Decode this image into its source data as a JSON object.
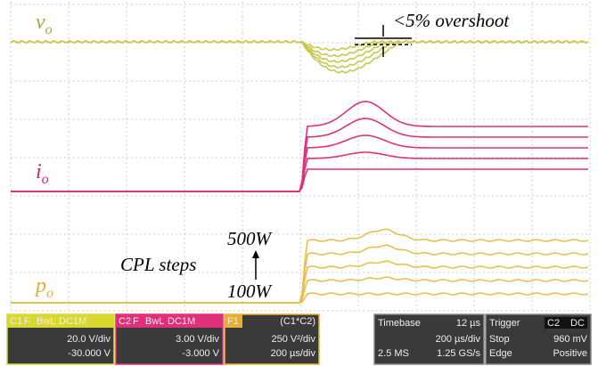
{
  "traces": {
    "vo": {
      "base": "v",
      "sub": "o"
    },
    "io": {
      "base": "i",
      "sub": "o"
    },
    "po": {
      "base": "p",
      "sub": "o"
    }
  },
  "annotations": {
    "overshoot": "<5% overshoot",
    "cpl_steps": "CPL steps",
    "top_step": "500W",
    "bottom_step": "100W"
  },
  "status_bar": {
    "c1": {
      "tags": [
        "C1",
        "F",
        "BwL",
        "DC1M"
      ],
      "scale": "20.0 V/div",
      "offset": "-30.000 V"
    },
    "c2": {
      "tags": [
        "C2",
        "F",
        "BwL",
        "DC1M"
      ],
      "scale": "3.00 V/div",
      "offset": "-3.000 V"
    },
    "f1": {
      "tag": "F1",
      "formula": "(C1*C2)",
      "scale": "250 V²/div",
      "timebase": "200 µs/div"
    },
    "timebase": {
      "title": "Timebase",
      "delay": "12 µs",
      "scale": "200 µs/div",
      "memory": "2.5 MS",
      "rate": "1.25 GS/s"
    },
    "trigger": {
      "title": "Trigger",
      "source": "C2",
      "coupling": "DC",
      "mode": "Stop",
      "level": "960 mV",
      "type": "Edge",
      "slope": "Positive"
    }
  }
}
